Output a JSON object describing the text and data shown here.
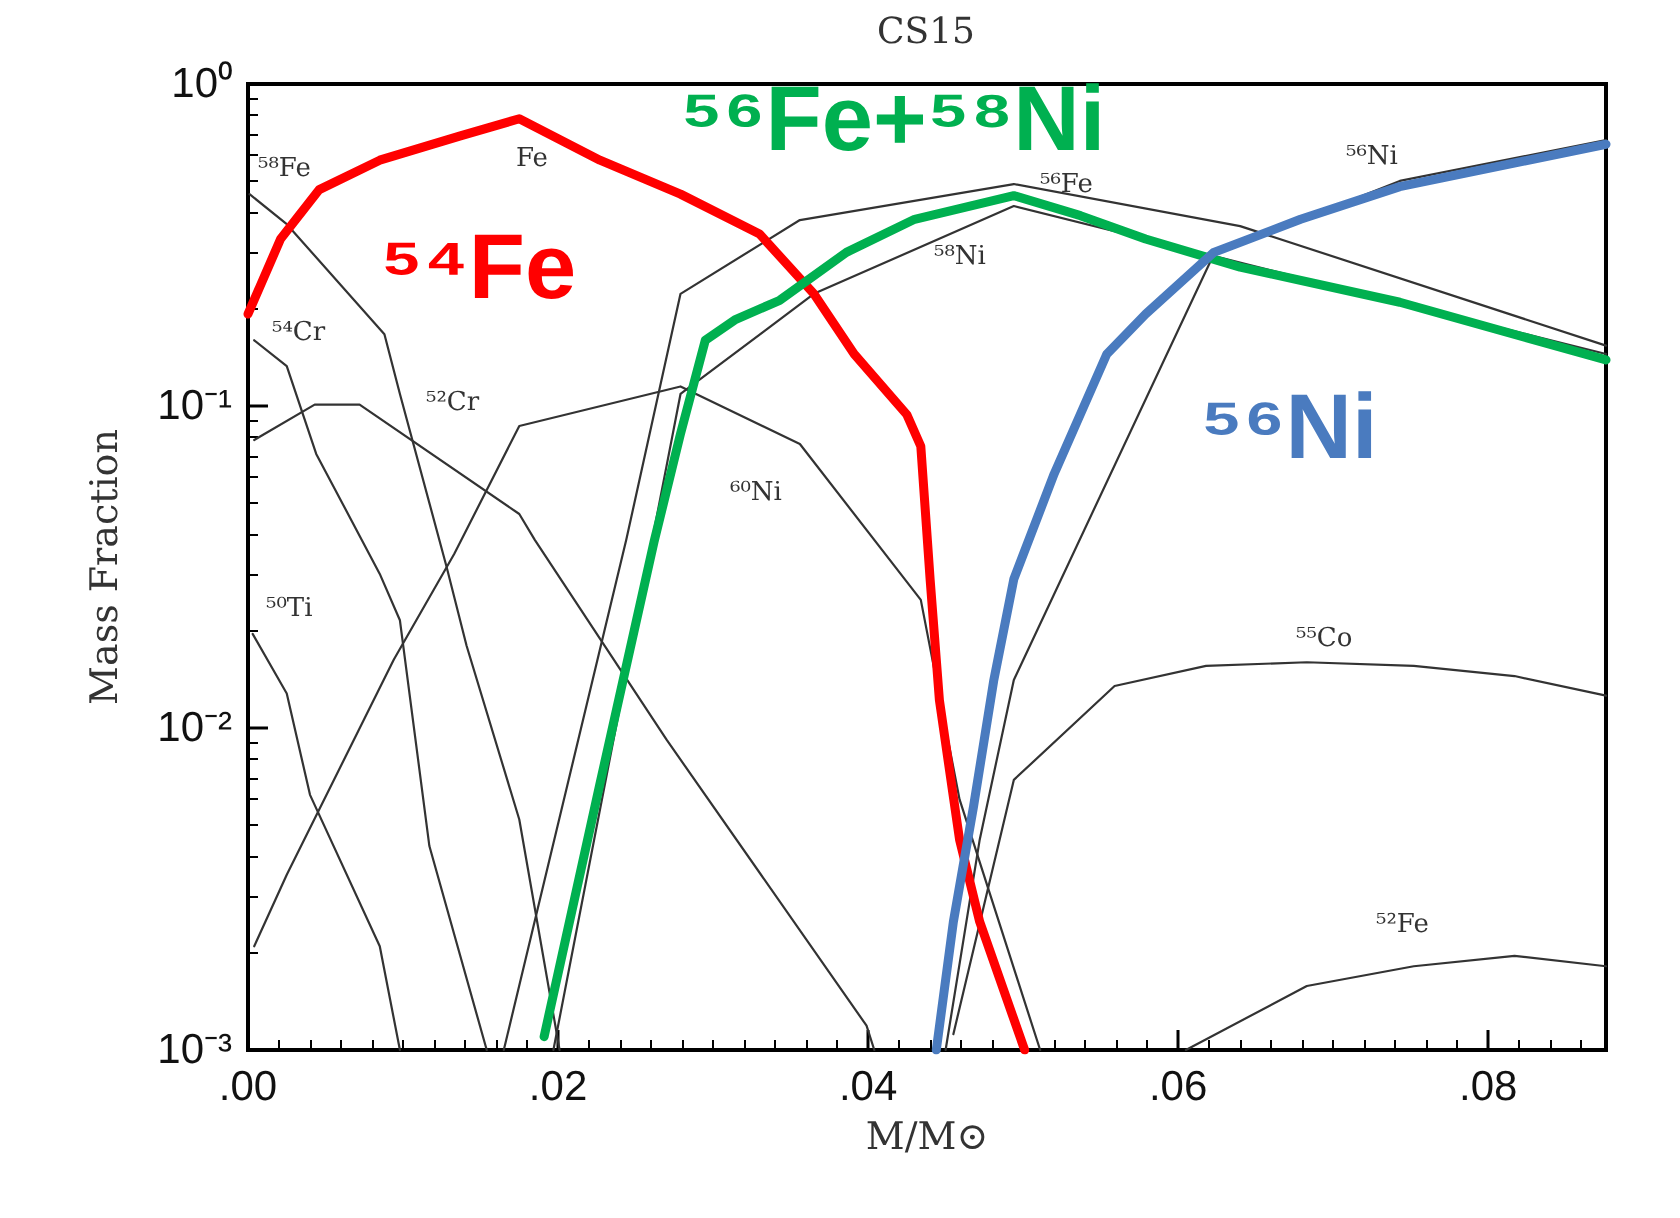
{
  "chart_data": {
    "type": "line",
    "title": "CS15",
    "xlabel": "M/M⊙",
    "ylabel": "Mass Fraction",
    "log": "y",
    "grid": false,
    "marker": "none",
    "line_style": "solid",
    "legend": false,
    "xlim": [
      0,
      0.0876
    ],
    "xticks": [
      {
        "value": 0,
        "label": ".00"
      },
      {
        "value": 0.02,
        "label": ".02"
      },
      {
        "value": 0.04,
        "label": ".04"
      },
      {
        "value": 0.06,
        "label": ".06"
      },
      {
        "value": 0.08,
        "label": ".08"
      }
    ],
    "ylim": [
      0.001,
      1
    ],
    "yticks": [
      {
        "value": 0.001,
        "label": "10⁻³"
      },
      {
        "value": 0.01,
        "label": "10⁻²"
      },
      {
        "value": 0.1,
        "label": "10⁻¹"
      },
      {
        "value": 1,
        "label": "10⁰"
      }
    ],
    "series": [
      {
        "name": "⁵⁸Fe",
        "color": "#333333",
        "x": [
          0.0001,
          0.0025,
          0.0088,
          0.0098,
          0.0128,
          0.0141,
          0.0175,
          0.0201
        ],
        "values": [
          0.455,
          0.367,
          0.167,
          0.109,
          0.0318,
          0.018,
          0.0052,
          0.001
        ]
      },
      {
        "name": "⁵⁴Cr",
        "color": "#333333",
        "x": [
          0.0004,
          0.0025,
          0.0044,
          0.0085,
          0.0098,
          0.0117,
          0.0154
        ],
        "values": [
          0.16,
          0.133,
          0.071,
          0.0301,
          0.0216,
          0.0043,
          0.001
        ]
      },
      {
        "name": "⁵²Cr",
        "color": "#333333",
        "x": [
          0.0004,
          0.0043,
          0.0072,
          0.0175,
          0.0185,
          0.027,
          0.0399,
          0.0404
        ],
        "values": [
          0.0784,
          0.101,
          0.101,
          0.0462,
          0.0384,
          0.0092,
          0.00119,
          0.001
        ]
      },
      {
        "name": "⁵⁰Ti",
        "color": "#333333",
        "x": [
          0.0003,
          0.0025,
          0.004,
          0.0085,
          0.0098
        ],
        "values": [
          0.0196,
          0.0128,
          0.0062,
          0.0021,
          0.001
        ]
      },
      {
        "name": "⁶⁰Ni",
        "color": "#333333",
        "x": [
          0.0004,
          0.0025,
          0.0094,
          0.0133,
          0.0175,
          0.0279,
          0.0356,
          0.0434,
          0.0459,
          0.0511
        ],
        "values": [
          0.0021,
          0.0035,
          0.0163,
          0.0347,
          0.0867,
          0.115,
          0.0762,
          0.025,
          0.006,
          0.001
        ]
      },
      {
        "name": "⁵⁶Fe",
        "color": "#333333",
        "x": [
          0.0165,
          0.0244,
          0.0279,
          0.0356,
          0.0494,
          0.064,
          0.0876
        ],
        "values": [
          0.001,
          0.0384,
          0.223,
          0.378,
          0.489,
          0.362,
          0.154
        ]
      },
      {
        "name": "⁵⁸Ni",
        "color": "#333333",
        "x": [
          0.0197,
          0.0262,
          0.0279,
          0.0365,
          0.0494,
          0.064,
          0.0876
        ],
        "values": [
          0.001,
          null,
          0.109,
          0.223,
          0.418,
          null,
          0.145
        ]
      },
      {
        "name": "⁵⁶Ni",
        "color": "#333333",
        "x": [
          0.045,
          0.0472,
          0.0494,
          0.052,
          0.0554,
          0.0623,
          0.0743,
          0.0876
        ],
        "values": [
          0.001,
          0.0045,
          0.0141,
          null,
          null,
          0.296,
          0.5,
          0.67
        ]
      },
      {
        "name": "⁵⁵Co",
        "color": "#333333",
        "x": [
          0.0455,
          0.0494,
          0.0559,
          0.0618,
          0.0683,
          0.0752,
          0.0817,
          0.0876
        ],
        "values": [
          0.00112,
          0.0069,
          0.0135,
          0.0156,
          0.016,
          0.0156,
          0.0145,
          0.0126
        ]
      },
      {
        "name": "⁵²Fe",
        "color": "#333333",
        "x": [
          0.0605,
          0.0683,
          0.0752,
          0.0817,
          0.0876
        ],
        "values": [
          0.001,
          0.00158,
          0.00182,
          0.00196,
          0.00182
        ]
      },
      {
        "name": "⁵⁴Fe",
        "color": "#ff0000",
        "x": [
          0,
          0.0021,
          0.0046,
          0.0085,
          0.0137,
          0.0175,
          0.0227,
          0.0279,
          0.033,
          0.0365,
          0.0391,
          0.0425,
          0.0434,
          0.044,
          0.0446,
          0.0459,
          0.0472,
          0.0501
        ],
        "values": [
          0.193,
          0.33,
          0.47,
          0.58,
          0.69,
          0.78,
          0.58,
          0.455,
          0.342,
          0.223,
          0.145,
          0.094,
          0.075,
          0.029,
          0.0122,
          0.0045,
          0.0025,
          0.001
        ]
      },
      {
        "name": "⁵⁶Fe+⁵⁸Ni",
        "color": "#00b050",
        "x": [
          0.0191,
          0.0227,
          0.0262,
          0.0279,
          0.0295,
          0.0314,
          0.0343,
          0.0386,
          0.043,
          0.0494,
          0.0537,
          0.0579,
          0.064,
          0.0743,
          0.0876
        ],
        "values": [
          0.0011,
          0.0067,
          0.038,
          0.082,
          0.16,
          0.185,
          0.213,
          0.3,
          0.38,
          0.45,
          0.39,
          0.33,
          0.27,
          0.21,
          0.139
        ]
      },
      {
        "name": "⁵⁶Ni",
        "color": "#4a7bbf",
        "x": [
          0.0444,
          0.0455,
          0.0468,
          0.0481,
          0.0494,
          0.052,
          0.0554,
          0.0579,
          0.0623,
          0.0679,
          0.0743,
          0.0876
        ],
        "values": [
          0.001,
          0.0025,
          0.0057,
          0.014,
          0.029,
          0.0615,
          0.145,
          0.193,
          0.3,
          0.38,
          0.48,
          0.65
        ]
      }
    ],
    "annotations": [
      "Fe"
    ]
  }
}
